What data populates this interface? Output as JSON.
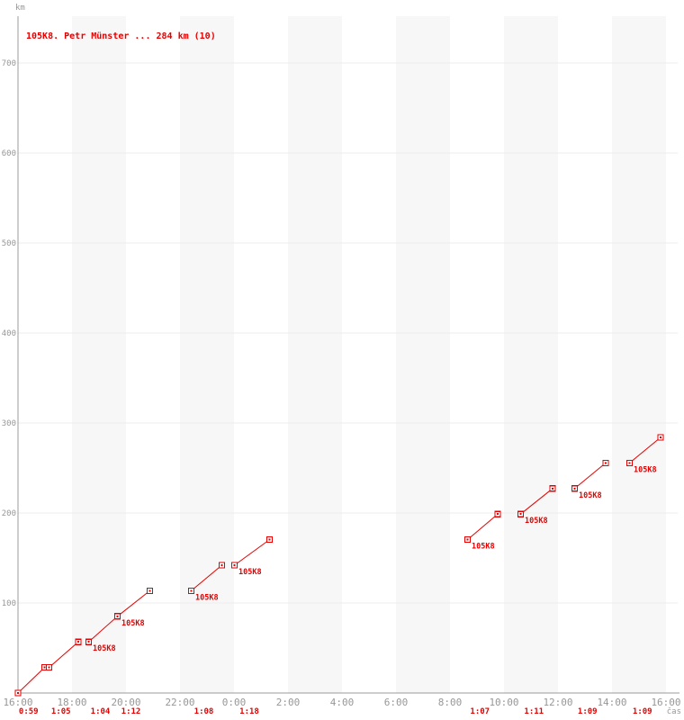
{
  "header": {
    "title": "105K8. Petr Münster ... 284 km (10)"
  },
  "axes": {
    "y_unit": "km",
    "x_unit": "čas",
    "y_ticks": [
      100,
      200,
      300,
      400,
      500,
      600,
      700
    ],
    "x_ticks": [
      "16:00",
      "18:00",
      "20:00",
      "22:00",
      "0:00",
      "2:00",
      "4:00",
      "6:00",
      "8:00",
      "10:00",
      "12:00",
      "14:00",
      "16:00"
    ]
  },
  "chart_data": {
    "type": "line",
    "title": "105K8. Petr Münster ... 284 km (10)",
    "series_label": "105K8",
    "runner": "Petr Münster",
    "total_km": 284,
    "lap_count": 10,
    "lap_distance_km": 28.4,
    "xlabel": "čas",
    "ylabel": "km",
    "x_range": [
      "16:00",
      "16:00"
    ],
    "x_span_hours": 24,
    "ylim": [
      0,
      760
    ],
    "grid": true,
    "laps": [
      {
        "n": 1,
        "start": "16:00",
        "end": "16:59",
        "duration": "0:59",
        "km_start": 0,
        "km_end": 28.4,
        "show_point_label": false
      },
      {
        "n": 2,
        "start": "17:09",
        "end": "18:14",
        "duration": "1:05",
        "km_start": 28.4,
        "km_end": 56.8,
        "show_point_label": false
      },
      {
        "n": 3,
        "start": "18:37",
        "end": "19:41",
        "duration": "1:04",
        "km_start": 56.8,
        "km_end": 85.2,
        "show_point_label": true
      },
      {
        "n": 4,
        "start": "19:41",
        "end": "20:53",
        "duration": "1:12",
        "km_start": 85.2,
        "km_end": 113.6,
        "show_point_label": true
      },
      {
        "n": 5,
        "start": "22:25",
        "end": "23:33",
        "duration": "1:08",
        "km_start": 113.6,
        "km_end": 142.0,
        "show_point_label": true
      },
      {
        "n": 6,
        "start": "0:01",
        "end": "1:19",
        "duration": "1:18",
        "km_start": 142.0,
        "km_end": 170.4,
        "show_point_label": true
      },
      {
        "n": 7,
        "start": "8:39",
        "end": "9:46",
        "duration": "1:07",
        "km_start": 170.4,
        "km_end": 198.8,
        "show_point_label": true
      },
      {
        "n": 8,
        "start": "10:37",
        "end": "11:48",
        "duration": "1:11",
        "km_start": 198.8,
        "km_end": 227.2,
        "show_point_label": true
      },
      {
        "n": 9,
        "start": "12:37",
        "end": "13:46",
        "duration": "1:09",
        "km_start": 227.2,
        "km_end": 255.6,
        "show_point_label": true
      },
      {
        "n": 10,
        "start": "14:39",
        "end": "15:48",
        "duration": "1:09",
        "km_start": 255.6,
        "km_end": 284.0,
        "show_point_label": true
      }
    ]
  },
  "colors": {
    "accent": "#e60000",
    "axis": "#9b9b9b",
    "tick_text": "#979797",
    "grid": "#ececec",
    "band": "#f7f7f7",
    "background": "#ffffff",
    "marker_fill": "#ffffff"
  }
}
